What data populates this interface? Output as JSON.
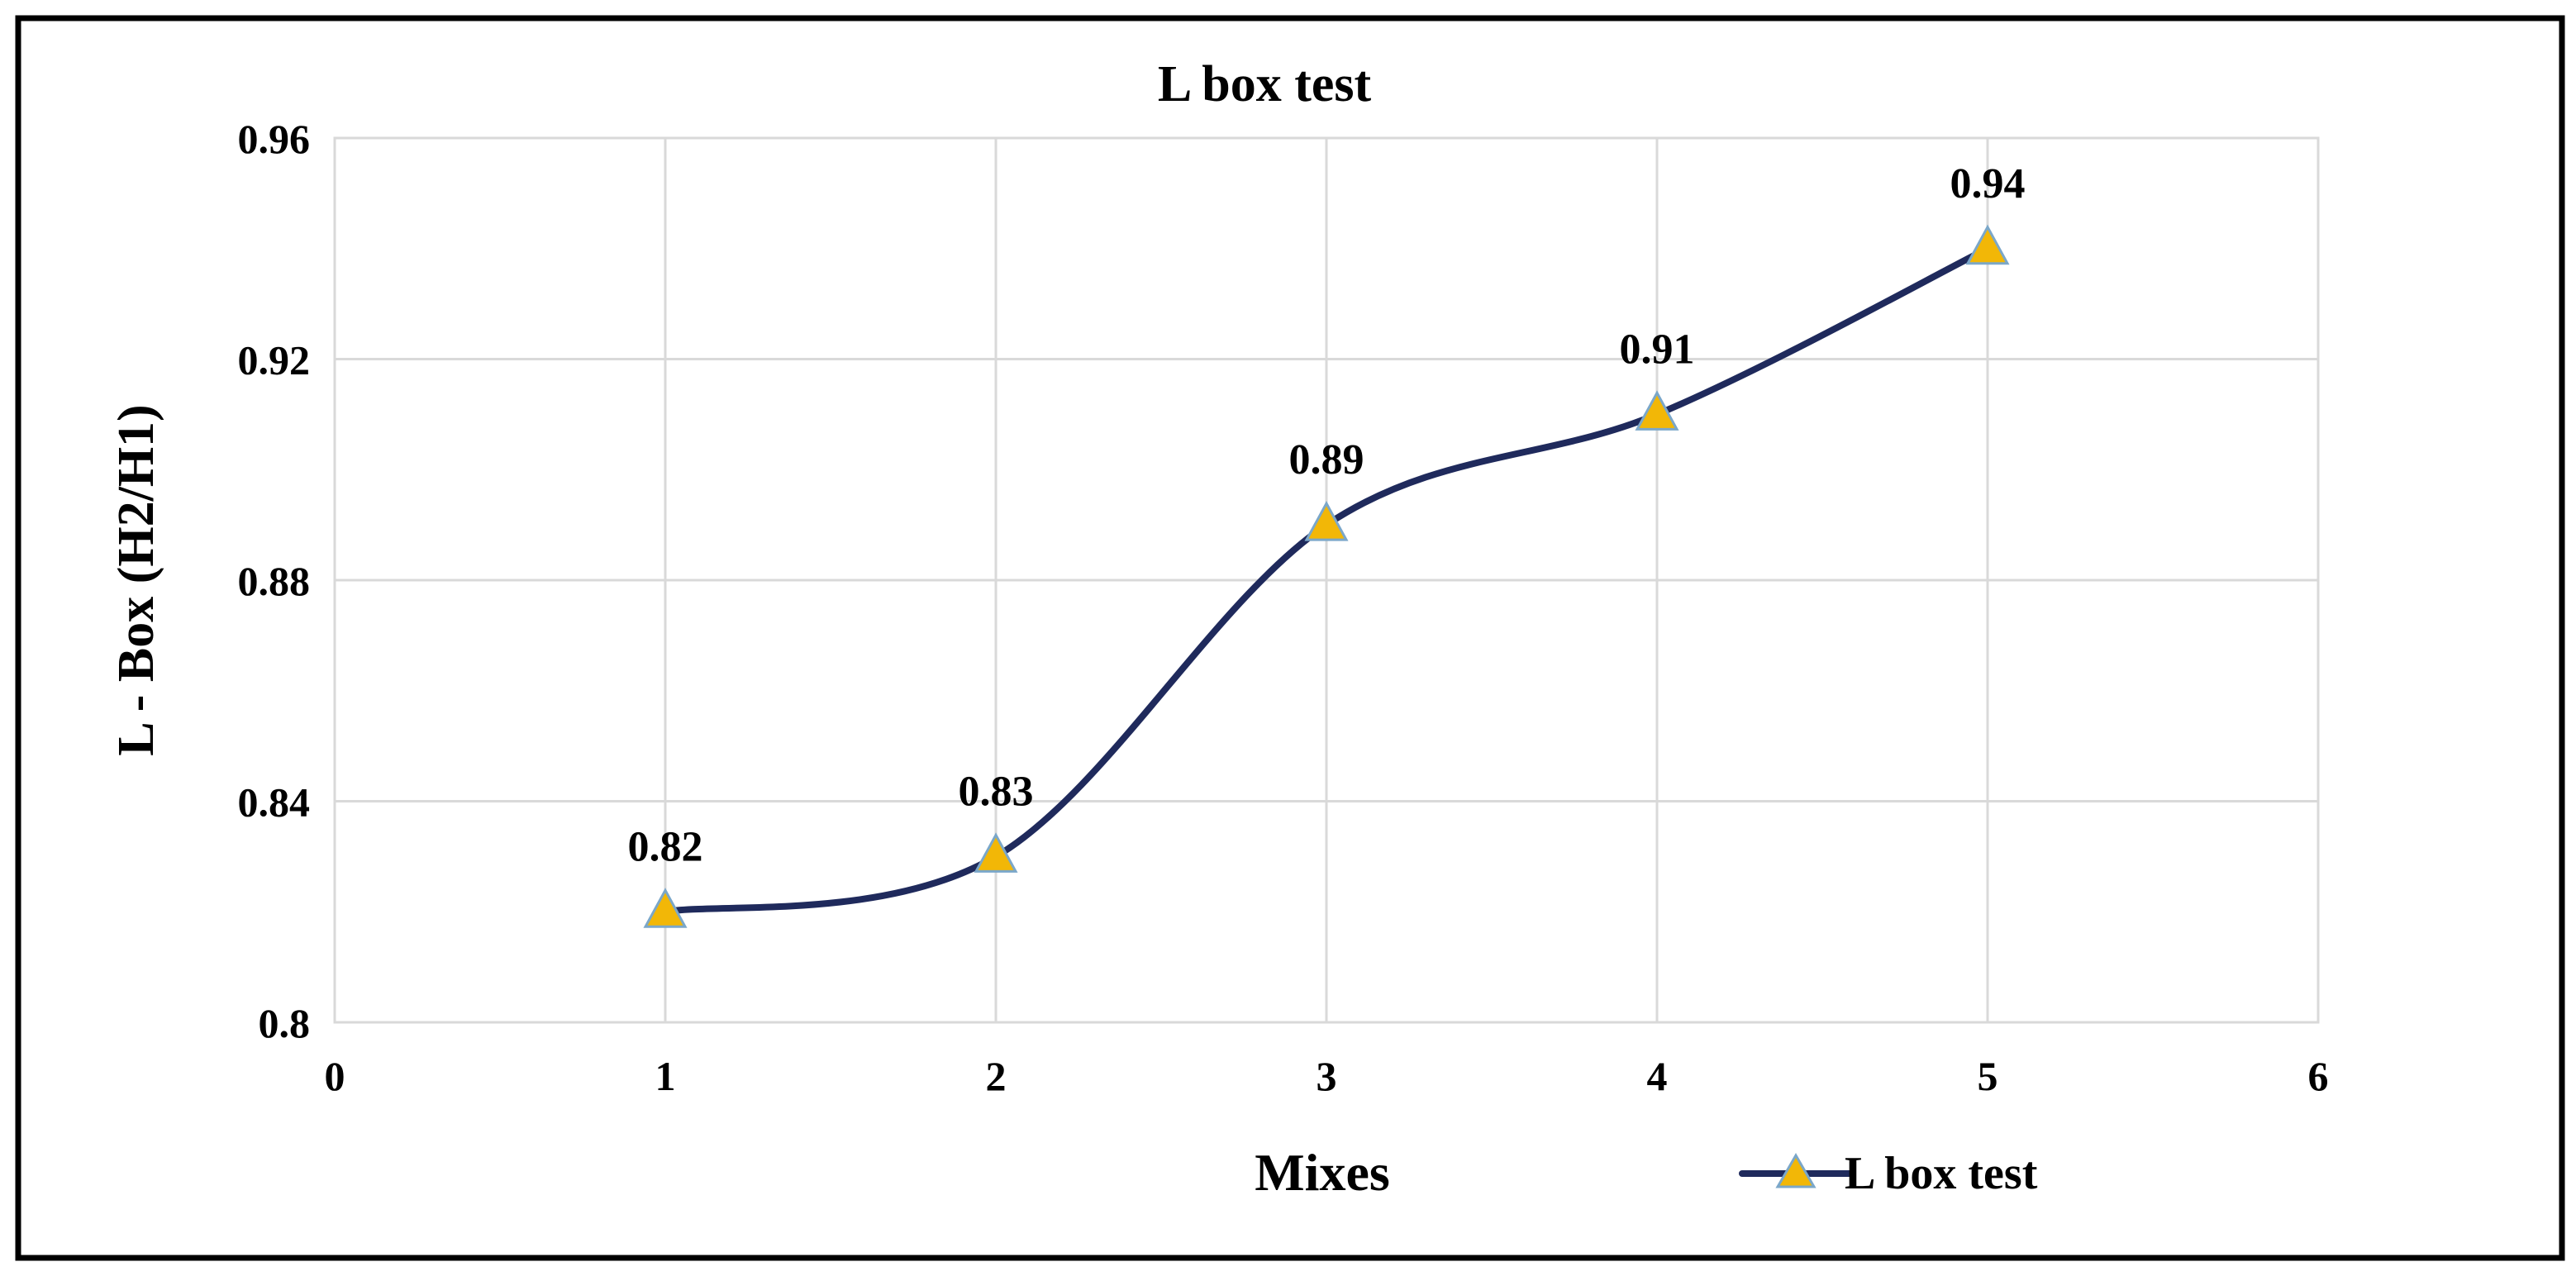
{
  "chart_data": {
    "type": "line",
    "smooth": true,
    "title": "L box test",
    "xlabel": "Mixes",
    "ylabel": "L - Box (H2/H1)",
    "x": [
      1,
      2,
      3,
      4,
      5
    ],
    "series": [
      {
        "name": "L box test",
        "values": [
          0.82,
          0.83,
          0.89,
          0.91,
          0.94
        ],
        "labels": [
          "0.82",
          "0.83",
          "0.89",
          "0.91",
          "0.94"
        ],
        "marker": "triangle",
        "line_color": "#1F2A5C",
        "marker_fill": "#F2B707",
        "marker_stroke": "#7BA7C9"
      }
    ],
    "xlim": [
      0,
      6
    ],
    "ylim": [
      0.8,
      0.96
    ],
    "x_ticks": [
      "0",
      "1",
      "2",
      "3",
      "4",
      "5",
      "6"
    ],
    "y_ticks": [
      "0.8",
      "0.84",
      "0.88",
      "0.92",
      "0.96"
    ],
    "grid": true,
    "legend": "bottom-right"
  }
}
